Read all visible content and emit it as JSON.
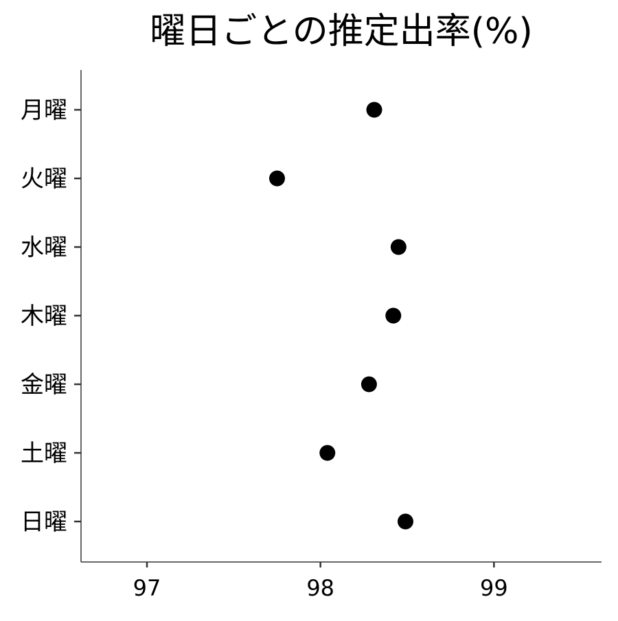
{
  "chart_data": {
    "type": "scatter",
    "title": "曜日ごとの推定出率(%)",
    "xlabel": "",
    "ylabel": "",
    "categories": [
      "月曜",
      "火曜",
      "水曜",
      "木曜",
      "金曜",
      "土曜",
      "日曜"
    ],
    "values": [
      98.31,
      97.75,
      98.45,
      98.42,
      98.28,
      98.04,
      98.49
    ],
    "xticks": [
      "97",
      "98",
      "99"
    ],
    "xlim": [
      96.62,
      99.62
    ],
    "grid": false,
    "legend": "none",
    "point_color": "#000000",
    "axis_color": "#333333"
  }
}
